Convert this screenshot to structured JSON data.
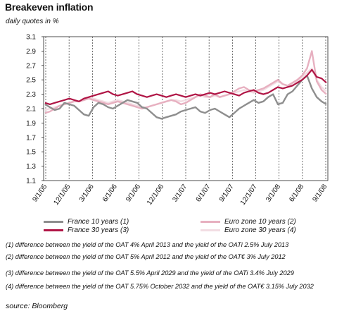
{
  "chart_data": {
    "type": "line",
    "title": "Breakeven inflation",
    "subtitle": "daily quotes in %",
    "ylim": [
      1.1,
      3.1
    ],
    "y_ticks": [
      "3.1",
      "2.9",
      "2.7",
      "2.5",
      "2.3",
      "2.1",
      "1.9",
      "1.7",
      "1.5",
      "1.3",
      "1.1"
    ],
    "x_ticks": [
      "9/1/05",
      "12/1/05",
      "3/1/06",
      "6/1/06",
      "9/1/06",
      "12/1/06",
      "3/1/07",
      "6/1/07",
      "9/1/07",
      "12/1/07",
      "3/1/08",
      "6/1/08",
      "9/1/08"
    ],
    "grid": "vertical-dashed",
    "series": [
      {
        "name": "France 10 years (1)",
        "color": "#8e8e8e",
        "values": [
          2.16,
          2.12,
          2.08,
          2.1,
          2.18,
          2.16,
          2.14,
          2.08,
          2.02,
          2.0,
          2.12,
          2.18,
          2.16,
          2.12,
          2.1,
          2.14,
          2.18,
          2.22,
          2.2,
          2.18,
          2.12,
          2.1,
          2.04,
          1.98,
          1.96,
          1.98,
          2.0,
          2.02,
          2.06,
          2.08,
          2.1,
          2.12,
          2.06,
          2.04,
          2.08,
          2.1,
          2.06,
          2.02,
          1.98,
          2.04,
          2.1,
          2.14,
          2.18,
          2.22,
          2.18,
          2.2,
          2.26,
          2.3,
          2.16,
          2.18,
          2.3,
          2.34,
          2.42,
          2.5,
          2.56,
          2.38,
          2.26,
          2.2,
          2.16
        ]
      },
      {
        "name": "France 30 years (3)",
        "color": "#b01545",
        "values": [
          2.18,
          2.16,
          2.18,
          2.2,
          2.22,
          2.24,
          2.22,
          2.2,
          2.24,
          2.26,
          2.28,
          2.3,
          2.32,
          2.34,
          2.3,
          2.28,
          2.3,
          2.32,
          2.34,
          2.3,
          2.28,
          2.26,
          2.28,
          2.3,
          2.28,
          2.26,
          2.28,
          2.3,
          2.28,
          2.26,
          2.28,
          2.3,
          2.28,
          2.3,
          2.32,
          2.3,
          2.32,
          2.34,
          2.32,
          2.3,
          2.28,
          2.32,
          2.34,
          2.36,
          2.32,
          2.3,
          2.32,
          2.36,
          2.4,
          2.38,
          2.4,
          2.42,
          2.46,
          2.5,
          2.56,
          2.64,
          2.54,
          2.52,
          2.46
        ]
      },
      {
        "name": "Euro zone 10 years (2)",
        "color": "#e7b0c0",
        "values": [
          2.04,
          2.06,
          2.1,
          2.14,
          2.16,
          2.18,
          2.2,
          2.2,
          2.22,
          2.24,
          2.22,
          2.2,
          2.18,
          2.16,
          2.18,
          2.2,
          2.18,
          2.16,
          2.14,
          2.12,
          2.1,
          2.12,
          2.14,
          2.16,
          2.18,
          2.2,
          2.22,
          2.2,
          2.16,
          2.18,
          2.22,
          2.26,
          2.3,
          2.28,
          2.26,
          2.3,
          2.26,
          2.28,
          2.3,
          2.34,
          2.38,
          2.4,
          2.36,
          2.34,
          2.36,
          2.38,
          2.42,
          2.46,
          2.5,
          2.44,
          2.42,
          2.46,
          2.5,
          2.56,
          2.66,
          2.9,
          2.48,
          2.36,
          2.3
        ]
      },
      {
        "name": "Euro zone 30 years (4)",
        "color": "#f2dde3",
        "values": [
          2.08,
          2.1,
          2.12,
          2.14,
          2.16,
          2.18,
          2.2,
          2.2,
          2.22,
          2.24,
          2.24,
          2.22,
          2.2,
          2.18,
          2.2,
          2.22,
          2.2,
          2.18,
          2.16,
          2.14,
          2.12,
          2.12,
          2.14,
          2.16,
          2.18,
          2.2,
          2.22,
          2.22,
          2.2,
          2.22,
          2.24,
          2.26,
          2.28,
          2.26,
          2.26,
          2.28,
          2.26,
          2.28,
          2.3,
          2.32,
          2.34,
          2.36,
          2.34,
          2.32,
          2.34,
          2.36,
          2.4,
          2.44,
          2.48,
          2.44,
          2.42,
          2.44,
          2.48,
          2.54,
          2.6,
          2.66,
          2.5,
          2.4,
          2.34
        ]
      }
    ],
    "legend_position": "bottom"
  },
  "notes": [
    "(1) difference between the yield of the OAT 4% April 2013 and the yield of the OATi 2.5% July 2013",
    "(2) difference between the yield of the OAT 5% April 2012 and the yield of the OAT€ 3% July 2012",
    "(3) difference between the yield of the OAT 5.5% April 2029 and the yield of the OATi 3.4% July 2029",
    "(4) difference between the yield of the OAT 5.75% October 2032 and the yield of the OAT€ 3.15% July 2032"
  ],
  "source": "source: Bloomberg"
}
